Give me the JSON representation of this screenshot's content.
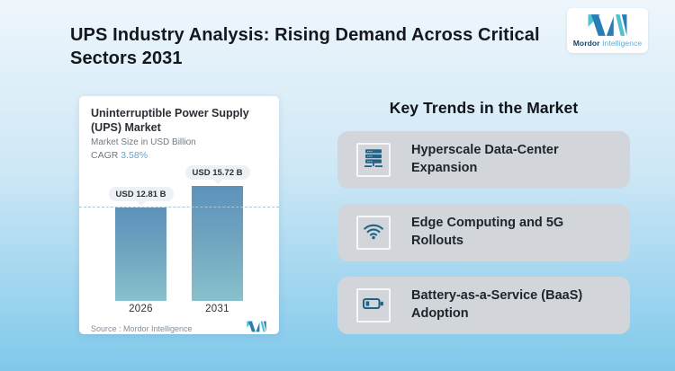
{
  "title": "UPS Industry Analysis: Rising Demand Across Critical Sectors 2031",
  "brand": {
    "name_primary": "Mordor",
    "name_secondary": "Intelligence"
  },
  "chart_card": {
    "title": "Uninterruptible Power Supply (UPS) Market",
    "subtitle": "Market Size in USD Billion",
    "cagr_label": "CAGR ",
    "cagr_value": "3.58%",
    "source": "Source : Mordor Intelligence"
  },
  "chart_data": {
    "type": "bar",
    "title": "Uninterruptible Power Supply (UPS) Market",
    "ylabel": "Market Size in USD Billion",
    "unit": "USD Billion",
    "cagr_percent": 3.58,
    "categories": [
      "2026",
      "2031"
    ],
    "values": [
      12.81,
      15.72
    ],
    "bar_labels": [
      "USD 12.81 B",
      "USD 15.72 B"
    ],
    "ylim": [
      0,
      15.72
    ],
    "reference_line_value": 12.81,
    "grid": false,
    "legend": false,
    "colors": {
      "bar_gradient_top": "#5d92bb",
      "bar_gradient_bottom": "#88c1cc",
      "reference_line": "#a5c8dc"
    }
  },
  "trends": {
    "heading": "Key Trends in the Market",
    "items": [
      {
        "icon": "server-rack-icon",
        "label": "Hyperscale Data-Center Expansion"
      },
      {
        "icon": "wifi-icon",
        "label": "Edge Computing and 5G Rollouts"
      },
      {
        "icon": "battery-icon",
        "label": "Battery-as-a-Service (BaaS) Adoption"
      }
    ]
  },
  "colors": {
    "background_top": "#eef6fc",
    "background_bottom": "#7fc8eb",
    "logo_blue": "#2a7cb7",
    "logo_teal": "#4ec3cf",
    "icon_blue": "#1f6387",
    "trend_card_bg": "#d2d6db",
    "cagr_value_color": "#5ca8d9"
  }
}
